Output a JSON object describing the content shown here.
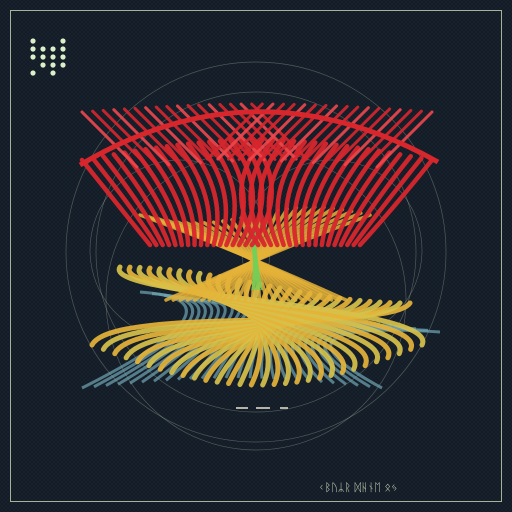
{
  "artwork": {
    "signature_glyphs": "ᚲᛒᚢᛦᚱ ᛞᚺᚾᛖ ᛟᛃ",
    "palette": {
      "background": "#121a24",
      "frame": "#c9d8b8",
      "upper_ribbons": "#d8262d",
      "upper_highlight": "#f0474c",
      "mid_ribbons": "#e5b338",
      "lower_ribbons": "#d7c14a",
      "lower_shadow": "#6fa6b4",
      "accent_green": "#6fd05a",
      "guide_circles": "#b9c6ad",
      "logo_dots": "#d9f0c8"
    },
    "logo_dot_grid": {
      "rows": 5,
      "cols": 4,
      "pattern": [
        [
          1,
          0,
          0,
          1
        ],
        [
          1,
          1,
          1,
          1
        ],
        [
          1,
          1,
          1,
          1
        ],
        [
          0,
          1,
          1,
          1
        ],
        [
          1,
          0,
          1,
          0
        ]
      ]
    },
    "ribbon_bands": [
      {
        "name": "upper",
        "color_key": "upper_ribbons",
        "count": 34
      },
      {
        "name": "middle",
        "color_key": "mid_ribbons",
        "count": 26
      },
      {
        "name": "lower",
        "color_key": "lower_ribbons",
        "count": 30
      }
    ]
  }
}
